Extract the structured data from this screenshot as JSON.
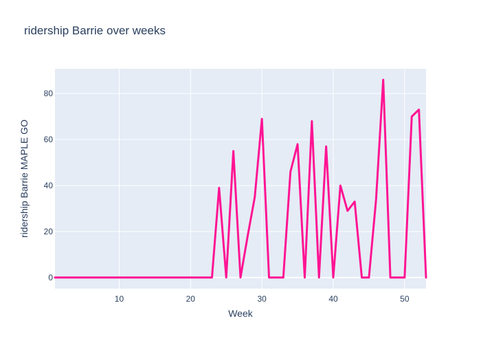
{
  "chart_data": {
    "type": "line",
    "title": "ridership Barrie over weeks",
    "xlabel": "Week",
    "ylabel": "ridership Barrie MAPLE GO",
    "xlim": [
      1,
      53
    ],
    "ylim": [
      -4.8,
      90.8
    ],
    "xticks": [
      10,
      20,
      30,
      40,
      50
    ],
    "yticks": [
      0,
      20,
      40,
      60,
      80
    ],
    "grid": true,
    "plot_bg": "#e5ecf6",
    "series": [
      {
        "color": "#ff1493",
        "x": [
          1,
          2,
          3,
          4,
          5,
          6,
          7,
          8,
          9,
          10,
          11,
          12,
          13,
          14,
          15,
          16,
          17,
          18,
          19,
          20,
          21,
          22,
          23,
          24,
          25,
          26,
          27,
          28,
          29,
          30,
          31,
          32,
          33,
          34,
          35,
          36,
          37,
          38,
          39,
          40,
          41,
          42,
          43,
          44,
          45,
          46,
          47,
          48,
          49,
          50,
          51,
          52,
          53
        ],
        "y": [
          0,
          0,
          0,
          0,
          0,
          0,
          0,
          0,
          0,
          0,
          0,
          0,
          0,
          0,
          0,
          0,
          0,
          0,
          0,
          0,
          0,
          0,
          0,
          39,
          0,
          55,
          0,
          18,
          35,
          69,
          0,
          0,
          0,
          46,
          58,
          0,
          68,
          0,
          57,
          0,
          40,
          29,
          33,
          0,
          0,
          34,
          86,
          0,
          0,
          0,
          70,
          73,
          0
        ]
      }
    ]
  }
}
